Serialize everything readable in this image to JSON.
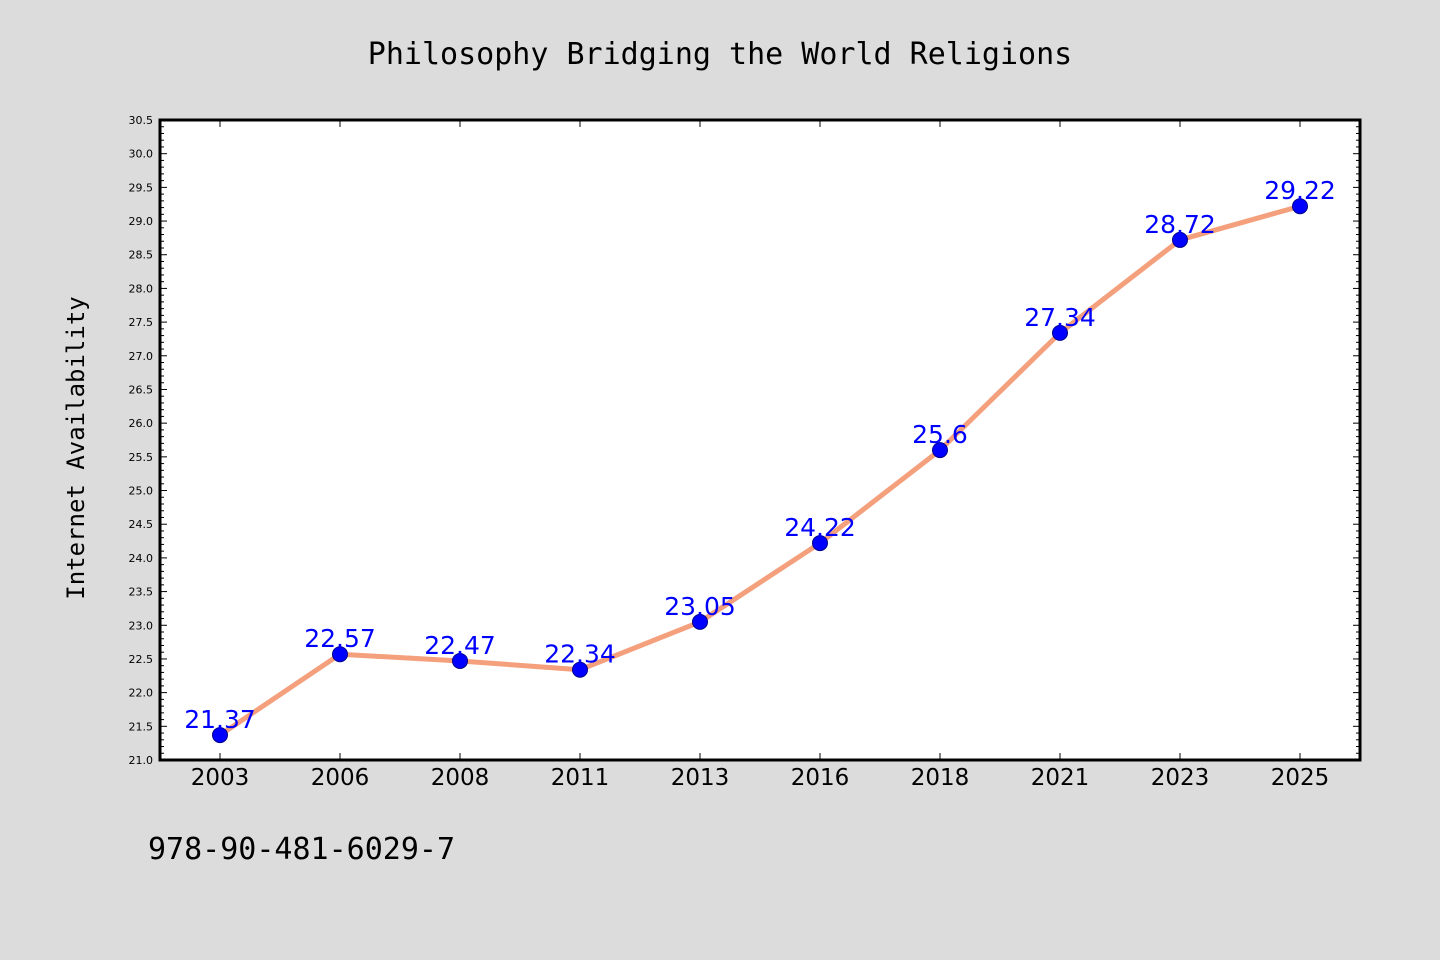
{
  "chart_data": {
    "type": "line",
    "title": "Philosophy Bridging the World Religions",
    "xlabel": "",
    "ylabel": "Internet Availability",
    "categories": [
      "2003",
      "2006",
      "2008",
      "2011",
      "2013",
      "2016",
      "2018",
      "2021",
      "2023",
      "2025"
    ],
    "values": [
      21.37,
      22.57,
      22.47,
      22.34,
      23.05,
      24.22,
      25.6,
      27.34,
      28.72,
      29.22
    ],
    "data_labels": [
      "21.37",
      "22.57",
      "22.47",
      "22.34",
      "23.05",
      "24.22",
      "25.6",
      "27.34",
      "28.72",
      "29.22"
    ],
    "ylim": [
      21.0,
      30.5
    ],
    "yticks": [
      "21.0",
      "21.5",
      "22.0",
      "22.5",
      "23.0",
      "23.5",
      "24.0",
      "24.5",
      "25.0",
      "25.5",
      "26.0",
      "26.5",
      "27.0",
      "27.5",
      "28.0",
      "28.5",
      "29.0",
      "29.5",
      "30.0",
      "30.5"
    ],
    "grid": false,
    "legend": "none",
    "colors": {
      "line": "#f4a07c",
      "marker": "#0000ff",
      "marker_edge": "#00008b",
      "data_label": "#0000ff",
      "plot_background": "#ffffff",
      "page_background": "#dcdcdc"
    }
  },
  "footnote": "978-90-481-6029-7"
}
